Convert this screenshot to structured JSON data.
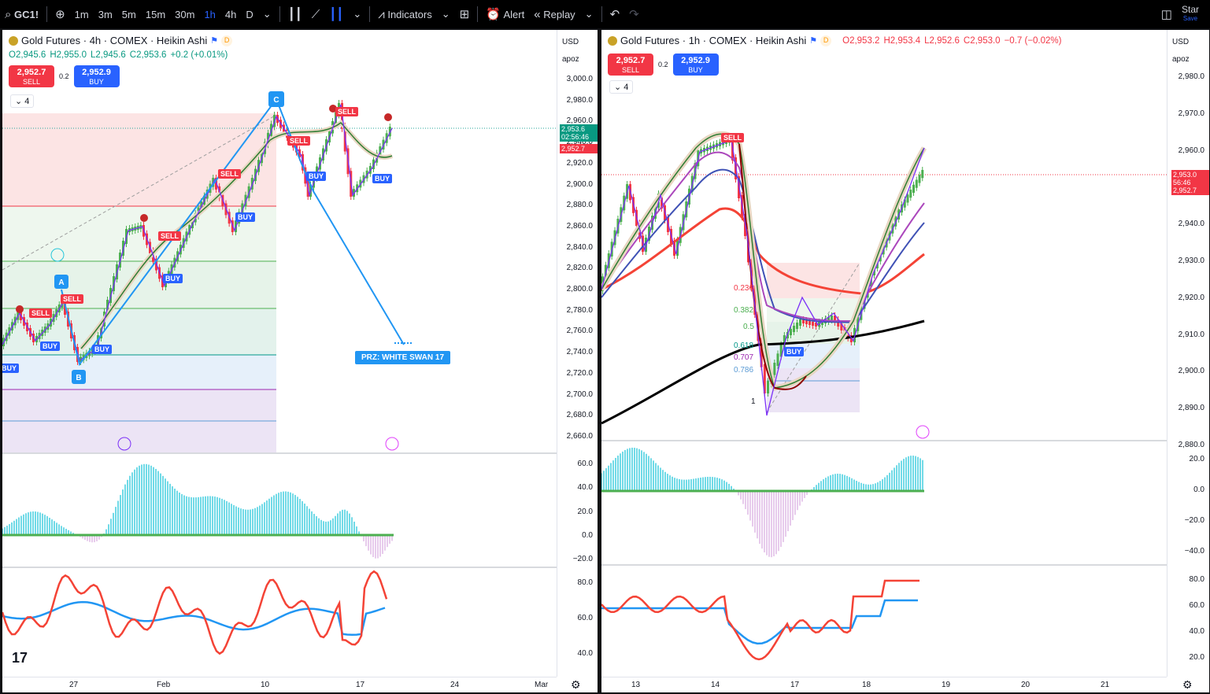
{
  "toolbar": {
    "symbol": "GC1!",
    "intervals": [
      "1m",
      "3m",
      "5m",
      "15m",
      "30m",
      "1h",
      "4h",
      "D"
    ],
    "active_interval": "1h",
    "indicators_label": "Indicators",
    "alert_label": "Alert",
    "replay_label": "Replay",
    "star_label": "Star",
    "save_label": "Save"
  },
  "left": {
    "title": "Gold Futures · 4h · COMEX · Heikin Ashi",
    "ohlc": {
      "o": "O2,945.6",
      "h": "H2,955.0",
      "l": "L2,945.6",
      "c": "C2,953.6",
      "chg": "+0.2 (+0.01%)"
    },
    "sell_price": "2,952.7",
    "sell_label": "SELL",
    "spread": "0.2",
    "buy_price": "2,952.9",
    "buy_label": "BUY",
    "collapse": "4",
    "currency": "USD",
    "indicator": "apoz",
    "y_ticks": [
      "3,000.0",
      "2,980.0",
      "2,960.0",
      "2,940.0",
      "2,920.0",
      "2,900.0",
      "2,880.0",
      "2,860.0",
      "2,840.0",
      "2,820.0",
      "2,800.0",
      "2,780.0",
      "2,760.0",
      "2,740.0",
      "2,720.0",
      "2,700.0",
      "2,680.0",
      "2,660.0"
    ],
    "last_price": "2,953.6",
    "countdown": "02:56:46",
    "bid": "2,952.7",
    "osc_ticks": [
      "60.0",
      "40.0",
      "20.0",
      "0.0",
      "−20.0"
    ],
    "rsi_ticks": [
      "80.0",
      "60.0",
      "40.0"
    ],
    "x_ticks": [
      "27",
      "Feb",
      "10",
      "17",
      "24",
      "Mar"
    ],
    "prz_label": "PRZ: WHITE SWAN 17",
    "pattern_labels": [
      "A",
      "B",
      "C"
    ]
  },
  "right": {
    "title": "Gold Futures · 1h · COMEX · Heikin Ashi",
    "ohlc": {
      "o": "O2,953.2",
      "h": "H2,953.4",
      "l": "L2,952.6",
      "c": "C2,953.0",
      "chg": "−0.7 (−0.02%)"
    },
    "sell_price": "2,952.7",
    "sell_label": "SELL",
    "spread": "0.2",
    "buy_price": "2,952.9",
    "buy_label": "BUY",
    "collapse": "4",
    "currency": "USD",
    "indicator": "apoz",
    "y_ticks": [
      "2,980.0",
      "2,970.0",
      "2,960.0",
      "2,950.0",
      "2,940.0",
      "2,930.0",
      "2,920.0",
      "2,910.0",
      "2,900.0",
      "2,890.0",
      "2,880.0"
    ],
    "last_price": "2,953.0",
    "countdown": "56:46",
    "bid": "2,952.7",
    "osc_ticks": [
      "20.0",
      "0.0",
      "−20.0",
      "−40.0"
    ],
    "rsi_ticks": [
      "80.0",
      "60.0",
      "40.0",
      "20.0"
    ],
    "x_ticks": [
      "13",
      "14",
      "17",
      "18",
      "19",
      "20",
      "21"
    ],
    "fib_labels": [
      "0.236",
      "0.382",
      "0.5",
      "0.618",
      "0.707",
      "0.786",
      "1"
    ]
  },
  "colors": {
    "up": "#089981",
    "down": "#f23645",
    "accent": "#2962ff"
  }
}
